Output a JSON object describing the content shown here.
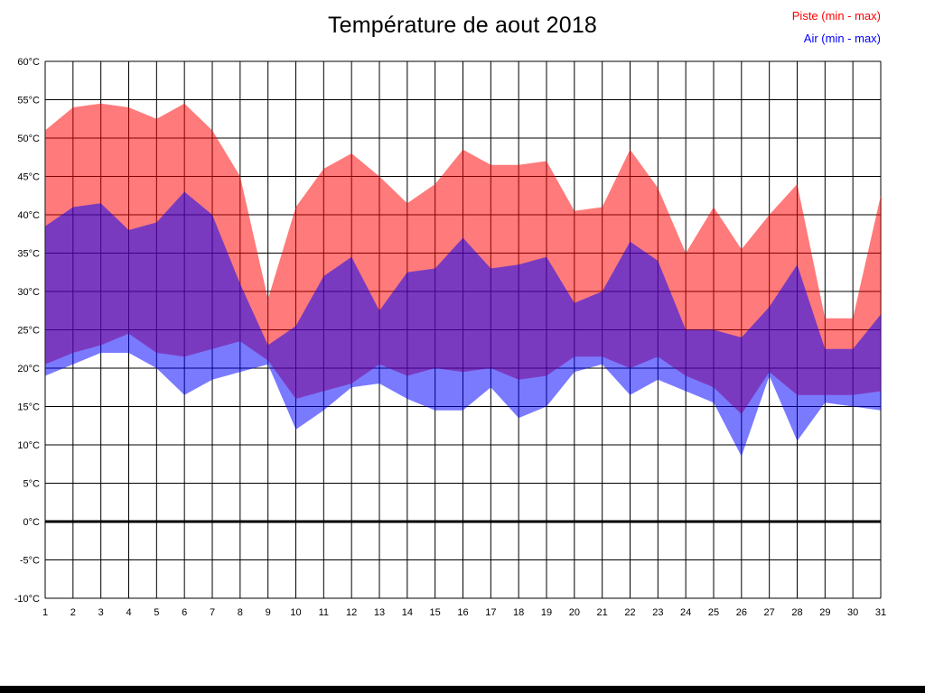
{
  "title": "Température de aout 2018",
  "legend": [
    {
      "label": "Piste (min - max)",
      "color": "#ff0000"
    },
    {
      "label": "Air (min - max)",
      "color": "#0000ff"
    }
  ],
  "chart_data": {
    "type": "area",
    "title": "Température de aout 2018",
    "xlabel": "",
    "ylabel": "",
    "ylim": [
      -10,
      60
    ],
    "ystep": 5,
    "y_tick_suffix": "°C",
    "grid": true,
    "zero_line": true,
    "legend_position": "top-right",
    "x": [
      1,
      2,
      3,
      4,
      5,
      6,
      7,
      8,
      9,
      10,
      11,
      12,
      13,
      14,
      15,
      16,
      17,
      18,
      19,
      20,
      21,
      22,
      23,
      24,
      25,
      26,
      27,
      28,
      29,
      30,
      31
    ],
    "series": [
      {
        "key": "piste",
        "name": "Piste (min - max)",
        "color": "#ff0000",
        "max": [
          51,
          54,
          54.5,
          54,
          52.5,
          54.5,
          51,
          45,
          29,
          41,
          46,
          48,
          45,
          41.5,
          44,
          48.5,
          46.5,
          46.5,
          47,
          40.5,
          41,
          48.5,
          43.5,
          35,
          41,
          35.5,
          40,
          44,
          26.5,
          26.5,
          42.5
        ],
        "min": [
          20.5,
          22,
          23,
          24.5,
          22,
          21.5,
          22.5,
          23.5,
          21,
          16,
          17,
          18,
          20.5,
          19,
          20,
          19.5,
          20,
          18.5,
          19,
          21.5,
          21.5,
          20,
          21.5,
          19,
          17.5,
          14,
          19.5,
          16.5,
          16.5,
          16.5,
          17
        ]
      },
      {
        "key": "air",
        "name": "Air (min - max)",
        "color": "#0000ff",
        "max": [
          38.5,
          41,
          41.5,
          38,
          39,
          43,
          40,
          31,
          23,
          25.5,
          32,
          34.5,
          27.5,
          32.5,
          33,
          37,
          33,
          33.5,
          34.5,
          28.5,
          30,
          36.5,
          34,
          25,
          25,
          24,
          28,
          33.5,
          22.5,
          22.5,
          27
        ],
        "min": [
          19,
          20.5,
          22,
          22,
          20,
          16.5,
          18.5,
          19.5,
          20.5,
          12,
          14.5,
          17.5,
          18,
          16,
          14.5,
          14.5,
          17.5,
          13.5,
          15,
          19.5,
          20.5,
          16.5,
          18.5,
          17,
          15.5,
          8.5,
          19,
          10.5,
          15.5,
          15,
          14.5
        ]
      }
    ]
  }
}
